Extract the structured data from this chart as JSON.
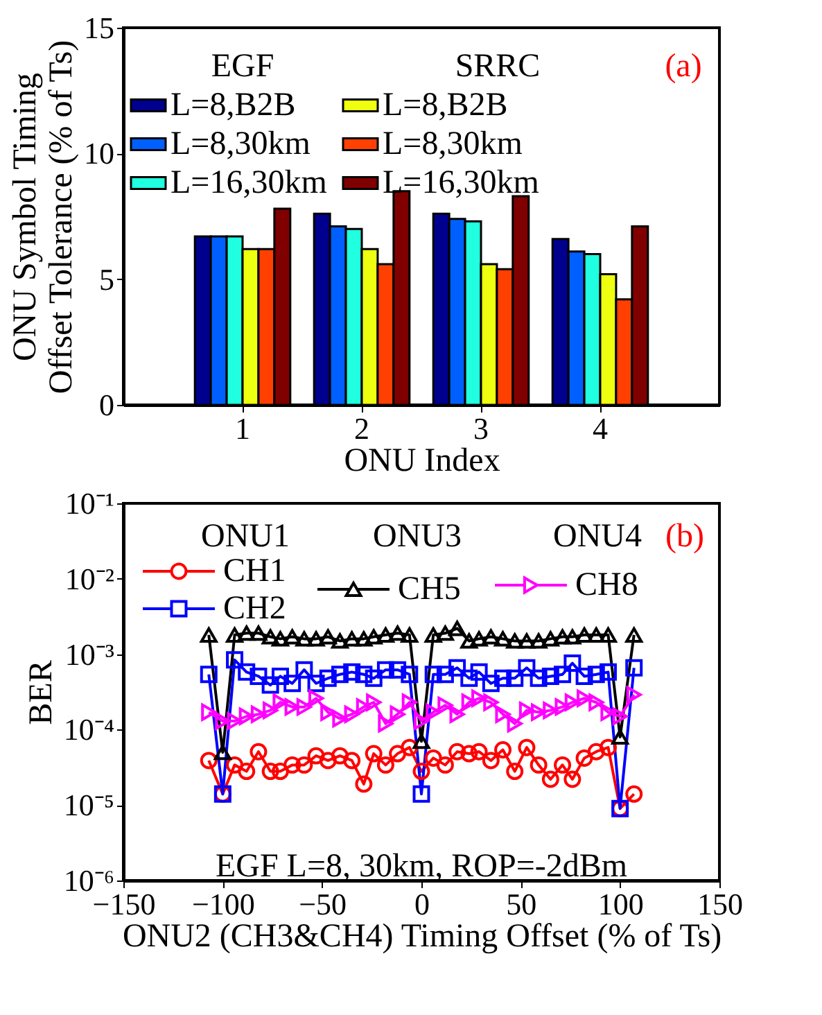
{
  "chart_data": [
    {
      "type": "bar",
      "categories": [
        "1",
        "2",
        "3",
        "4"
      ],
      "xlabel": "ONU Index",
      "ylabel": "ONU Symbol Timing\nOffset Tolerance (% of Ts)",
      "ylim": [
        0,
        15
      ],
      "yticks": [
        0,
        5,
        10,
        15
      ],
      "legend": "top",
      "grid": false,
      "annotations": [
        "EGF",
        "SRRC",
        "(a)"
      ],
      "series": [
        {
          "name": "L=8,B2B",
          "color": "#00008f",
          "values": [
            6.7,
            7.6,
            7.6,
            6.6
          ]
        },
        {
          "name": "L=8,30km",
          "color": "#0060ff",
          "values": [
            6.7,
            7.1,
            7.4,
            6.1
          ]
        },
        {
          "name": "L=16,30km",
          "color": "#20ffdf",
          "values": [
            6.7,
            7.0,
            7.3,
            6.0
          ]
        },
        {
          "name": "L=8,B2B",
          "color": "#efff10",
          "values": [
            6.2,
            6.2,
            5.6,
            5.2
          ]
        },
        {
          "name": "L=8,30km",
          "color": "#ff4000",
          "values": [
            6.2,
            5.6,
            5.4,
            4.2
          ]
        },
        {
          "name": "L=16,30km",
          "color": "#800000",
          "values": [
            7.8,
            8.5,
            8.3,
            7.1
          ]
        }
      ]
    },
    {
      "type": "line",
      "xlabel": "ONU2 (CH3&CH4) Timing Offset (% of Ts)",
      "ylabel": "BER",
      "log": "y",
      "ylim": [
        1e-06,
        0.1
      ],
      "yticks": [
        {
          "value": 1e-06,
          "label": "10⁻⁶"
        },
        {
          "value": 1e-05,
          "label": "10⁻⁵"
        },
        {
          "value": 0.0001,
          "label": "10⁻⁴"
        },
        {
          "value": 0.001,
          "label": "10⁻³"
        },
        {
          "value": 0.01,
          "label": "10⁻²"
        },
        {
          "value": 0.1,
          "label": "10⁻¹"
        }
      ],
      "xlim": [
        -150,
        150
      ],
      "xticks": [
        -150,
        -100,
        -50,
        0,
        50,
        100,
        150
      ],
      "legend": "top",
      "grid": false,
      "annotations": [
        "ONU1",
        "ONU3",
        "ONU4",
        "(b)",
        "EGF L=8, 30km, ROP=-2dBm"
      ],
      "x": [
        -107,
        -100,
        -94,
        -88,
        -82,
        -76,
        -71,
        -65,
        -59,
        -53,
        -47,
        -41,
        -35,
        -29,
        -24,
        -18,
        -12,
        -6,
        0,
        6,
        12,
        18,
        24,
        29,
        35,
        41,
        47,
        53,
        59,
        65,
        71,
        76,
        82,
        88,
        94,
        100,
        107
      ],
      "series": [
        {
          "name": "CH1",
          "color": "#ff0000",
          "marker": "circle",
          "values": [
            3.9e-05,
            1.4e-05,
            3.4e-05,
            2.8e-05,
            5.1e-05,
            2.8e-05,
            2.8e-05,
            3.4e-05,
            3.4e-05,
            4.5e-05,
            3.9e-05,
            4.5e-05,
            3.9e-05,
            1.9e-05,
            4.8e-05,
            3.4e-05,
            4.8e-05,
            5.8e-05,
            2.8e-05,
            4.2e-05,
            3.4e-05,
            5.1e-05,
            4.8e-05,
            5.1e-05,
            3.9e-05,
            5.4e-05,
            2.8e-05,
            5.8e-05,
            3.4e-05,
            2.2e-05,
            3.4e-05,
            2.2e-05,
            4.2e-05,
            5.1e-05,
            5.8e-05,
            9e-06,
            1.4e-05
          ]
        },
        {
          "name": "CH2",
          "color": "#0000ff",
          "marker": "square",
          "values": [
            0.00054,
            1.4e-05,
            0.00084,
            0.00058,
            0.00051,
            0.00039,
            0.00051,
            0.00041,
            0.00062,
            0.00041,
            0.00048,
            0.00054,
            0.00058,
            0.00054,
            0.00048,
            0.00062,
            0.00062,
            0.00054,
            1.4e-05,
            0.00054,
            0.00054,
            0.00066,
            0.00048,
            0.00058,
            0.00041,
            0.00048,
            0.00048,
            0.00066,
            0.00048,
            0.00051,
            0.00054,
            0.00076,
            0.00051,
            0.00054,
            0.00058,
            9e-06,
            0.00066
          ]
        },
        {
          "name": "CH5",
          "color": "#000000",
          "marker": "triangle",
          "values": [
            0.0018,
            5e-05,
            0.0018,
            0.0019,
            0.0019,
            0.0017,
            0.0016,
            0.0017,
            0.0016,
            0.0016,
            0.0017,
            0.0015,
            0.0016,
            0.0016,
            0.0017,
            0.0018,
            0.0019,
            0.0018,
            7e-05,
            0.0018,
            0.0019,
            0.0022,
            0.0015,
            0.0016,
            0.0017,
            0.0016,
            0.0015,
            0.0015,
            0.0015,
            0.0016,
            0.0017,
            0.0017,
            0.0018,
            0.0018,
            0.0018,
            8e-05,
            0.0018
          ]
        },
        {
          "name": "CH8",
          "color": "#ff00ff",
          "marker": "triangle-right",
          "values": [
            0.00017,
            0.00013,
            0.00013,
            0.00015,
            0.00016,
            0.00018,
            0.00023,
            0.0002,
            0.0002,
            0.00026,
            0.00017,
            0.00014,
            0.00016,
            0.0002,
            0.00023,
            0.00012,
            0.00016,
            0.00023,
            0.00013,
            0.00017,
            0.00021,
            0.00016,
            0.00023,
            0.00026,
            0.00023,
            0.00016,
            0.00012,
            0.00018,
            0.00017,
            0.00018,
            0.0002,
            0.00023,
            0.00026,
            0.00023,
            0.00017,
            0.00015,
            0.00029
          ]
        }
      ]
    }
  ]
}
